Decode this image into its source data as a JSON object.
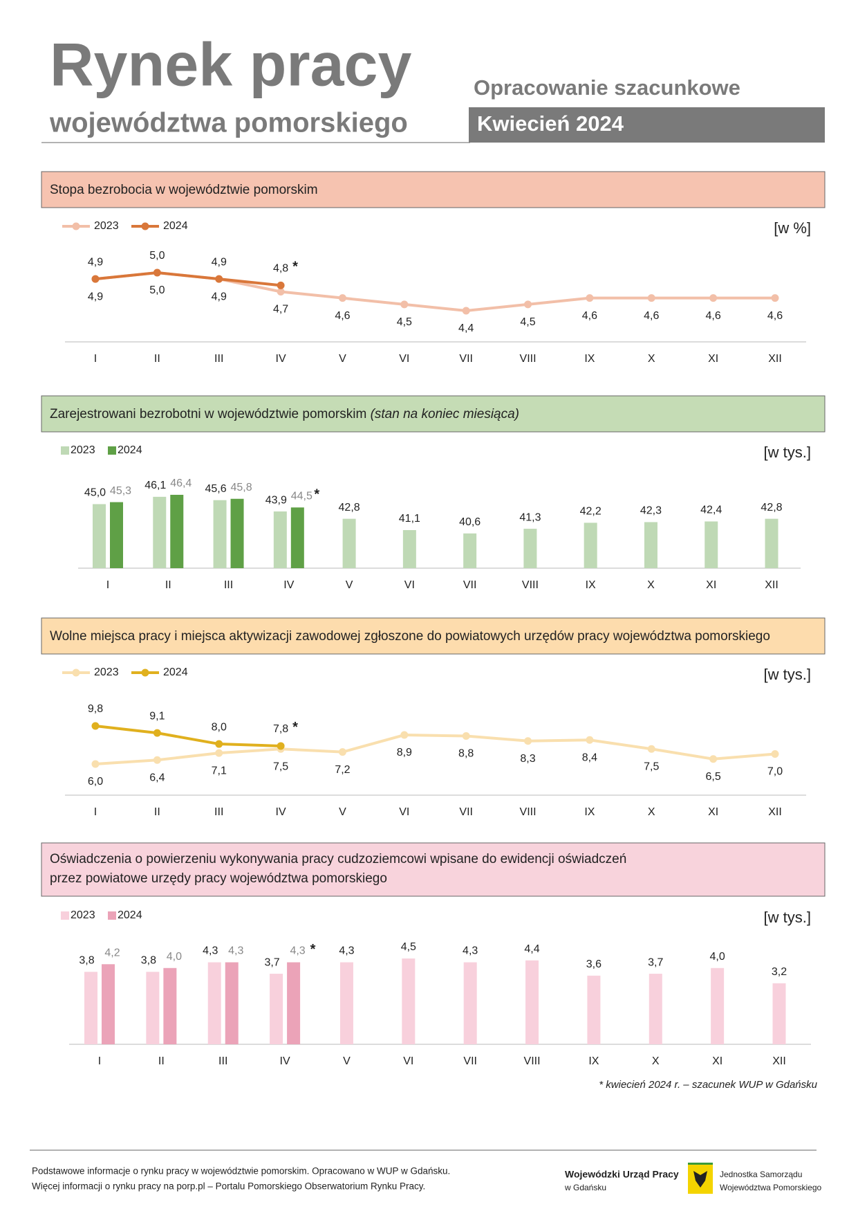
{
  "header": {
    "title": "Rynek pracy",
    "subtitle": "województwa pomorskiego",
    "note": "Opracowanie szacunkowe",
    "period": "Kwiecień 2024"
  },
  "chart_data": [
    {
      "type": "line",
      "title": "Stopa bezrobocia w województwie pomorskim",
      "unit": "[w %]",
      "annotation": "*",
      "categories": [
        "I",
        "II",
        "III",
        "IV",
        "V",
        "VI",
        "VII",
        "VIII",
        "IX",
        "X",
        "XI",
        "XII"
      ],
      "series": [
        {
          "name": "2023",
          "color": "#f2bfa8",
          "values": [
            4.9,
            5.0,
            4.9,
            4.7,
            4.6,
            4.5,
            4.4,
            4.5,
            4.6,
            4.6,
            4.6,
            4.6
          ],
          "value_labels": [
            "4,9",
            "5,0",
            "4,9",
            "4,7",
            "4,6",
            "4,5",
            "4,4",
            "4,5",
            "4,6",
            "4,6",
            "4,6",
            "4,6"
          ]
        },
        {
          "name": "2024",
          "color": "#d9773a",
          "values": [
            4.9,
            5.0,
            4.9,
            4.8,
            null,
            null,
            null,
            null,
            null,
            null,
            null,
            null
          ],
          "value_labels": [
            "4,9",
            "5,0",
            "4,9",
            "4,8",
            null,
            null,
            null,
            null,
            null,
            null,
            null,
            null
          ]
        }
      ]
    },
    {
      "type": "bar",
      "title": "Zarejestrowani bezrobotni w województwie pomorskim",
      "title_note": "(stan na koniec miesiąca)",
      "unit": "[w tys.]",
      "annotation": "*",
      "categories": [
        "I",
        "II",
        "III",
        "IV",
        "V",
        "VI",
        "VII",
        "VIII",
        "IX",
        "X",
        "XI",
        "XII"
      ],
      "series": [
        {
          "name": "2023",
          "color": "#bfd9b5",
          "values": [
            45.0,
            46.1,
            45.6,
            43.9,
            42.8,
            41.1,
            40.6,
            41.3,
            42.2,
            42.3,
            42.4,
            42.8
          ],
          "value_labels": [
            "45,0",
            "46,1",
            "45,6",
            "43,9",
            "42,8",
            "41,1",
            "40,6",
            "41,3",
            "42,2",
            "42,3",
            "42,4",
            "42,8"
          ]
        },
        {
          "name": "2024",
          "color": "#5fa046",
          "values": [
            45.3,
            46.4,
            45.8,
            44.5,
            null,
            null,
            null,
            null,
            null,
            null,
            null,
            null
          ],
          "value_labels": [
            "45,3",
            "46,4",
            "45,8",
            "44,5",
            null,
            null,
            null,
            null,
            null,
            null,
            null,
            null
          ]
        }
      ]
    },
    {
      "type": "line",
      "title": "Wolne miejsca pracy i miejsca aktywizacji zawodowej zgłoszone do powiatowych urzędów pracy województwa pomorskiego",
      "unit": "[w tys.]",
      "annotation": "*",
      "categories": [
        "I",
        "II",
        "III",
        "IV",
        "V",
        "VI",
        "VII",
        "VIII",
        "IX",
        "X",
        "XI",
        "XII"
      ],
      "series": [
        {
          "name": "2023",
          "color": "#f9dfae",
          "values": [
            6.0,
            6.4,
            7.1,
            7.5,
            7.2,
            8.9,
            8.8,
            8.3,
            8.4,
            7.5,
            6.5,
            7.0
          ],
          "value_labels": [
            "6,0",
            "6,4",
            "7,1",
            "7,5",
            "7,2",
            "8,9",
            "8,8",
            "8,3",
            "8,4",
            "7,5",
            "6,5",
            "7,0"
          ]
        },
        {
          "name": "2024",
          "color": "#e0b01e",
          "values": [
            9.8,
            9.1,
            8.0,
            7.8,
            null,
            null,
            null,
            null,
            null,
            null,
            null,
            null
          ],
          "value_labels": [
            "9,8",
            "9,1",
            "8,0",
            "7,8",
            null,
            null,
            null,
            null,
            null,
            null,
            null,
            null
          ]
        }
      ]
    },
    {
      "type": "bar",
      "title": "Oświadczenia o powierzeniu wykonywania pracy cudzoziemcowi wpisane do ewidencji oświadczeń",
      "title_line2": "przez powiatowe urzędy pracy województwa pomorskiego",
      "unit": "[w tys.]",
      "annotation": "*",
      "categories": [
        "I",
        "II",
        "III",
        "IV",
        "V",
        "VI",
        "VII",
        "VIII",
        "IX",
        "X",
        "XI",
        "XII"
      ],
      "series": [
        {
          "name": "2023",
          "color": "#f8d0dc",
          "values": [
            3.8,
            3.8,
            4.3,
            3.7,
            4.3,
            4.5,
            4.3,
            4.4,
            3.6,
            3.7,
            4.0,
            3.2
          ],
          "value_labels": [
            "3,8",
            "3,8",
            "4,3",
            "3,7",
            "4,3",
            "4,5",
            "4,3",
            "4,4",
            "3,6",
            "3,7",
            "4,0",
            "3,2"
          ]
        },
        {
          "name": "2024",
          "color": "#eba3b8",
          "values": [
            4.2,
            4.0,
            4.3,
            4.3,
            null,
            null,
            null,
            null,
            null,
            null,
            null,
            null
          ],
          "value_labels": [
            "4,2",
            "4,0",
            "4,3",
            "4,3",
            null,
            null,
            null,
            null,
            null,
            null,
            null,
            null
          ]
        }
      ]
    }
  ],
  "footnote": "* kwiecień 2024 r. – szacunek WUP w Gdańsku",
  "footer": {
    "line1": "Podstawowe informacje o rynku pracy w województwie pomorskim. Opracowano w WUP w Gdańsku.",
    "line2": "Więcej informacji o rynku pracy na porp.pl – Portalu Pomorskiego Obserwatorium Rynku Pracy.",
    "org1": "Wojewódzki Urząd Pracy",
    "org1_sub": "w Gdańsku",
    "org2": "Jednostka Samorządu",
    "org2_sub": "Województwa Pomorskiego"
  }
}
